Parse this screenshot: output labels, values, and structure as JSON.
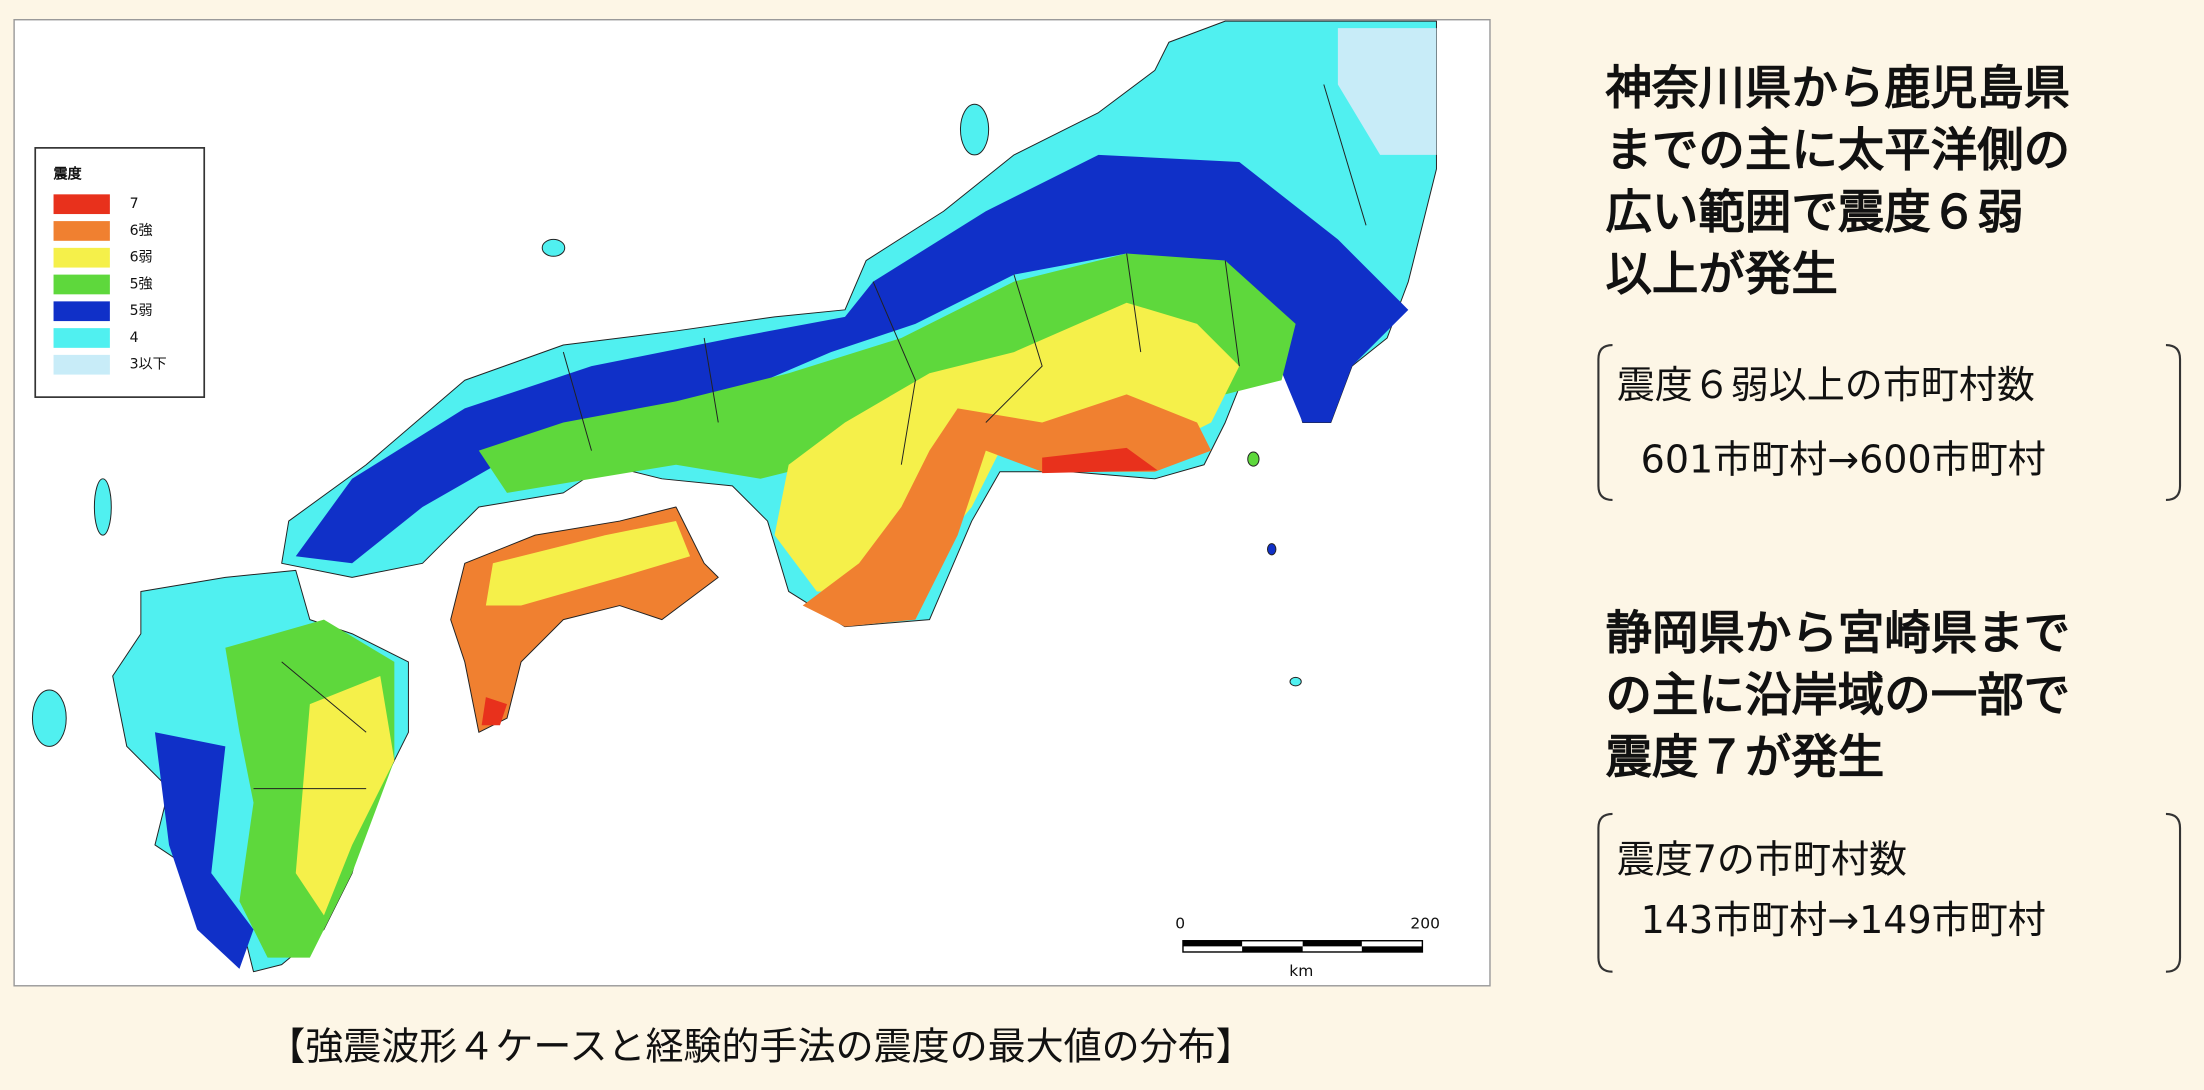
{
  "map": {
    "legend": {
      "title": "震度",
      "items": [
        {
          "label": "7",
          "color": "#e8311c"
        },
        {
          "label": "6強",
          "color": "#f08030"
        },
        {
          "label": "6弱",
          "color": "#f5f04a"
        },
        {
          "label": "5強",
          "color": "#5ed83c"
        },
        {
          "label": "5弱",
          "color": "#1030c8"
        },
        {
          "label": "4",
          "color": "#50f0f0"
        },
        {
          "label": "3以下",
          "color": "#c8ecf8"
        }
      ]
    },
    "scale": {
      "ticks": [
        0,
        200
      ],
      "unit": "km"
    }
  },
  "caption": "【強震波形４ケースと経験的手法の震度の最大値の分布】",
  "summary": [
    {
      "heading": [
        "神奈川県から鹿児島県",
        "までの主に太平洋側の",
        "広い範囲で震度６弱",
        "以上が発生"
      ],
      "box": [
        "震度６弱以上の市町村数",
        "601市町村→600市町村"
      ]
    },
    {
      "heading": [
        "静岡県から宮崎県まで",
        "の主に沿岸域の一部で",
        "震度７が発生"
      ],
      "box": [
        "震度7の市町村数",
        "143市町村→149市町村"
      ]
    }
  ]
}
